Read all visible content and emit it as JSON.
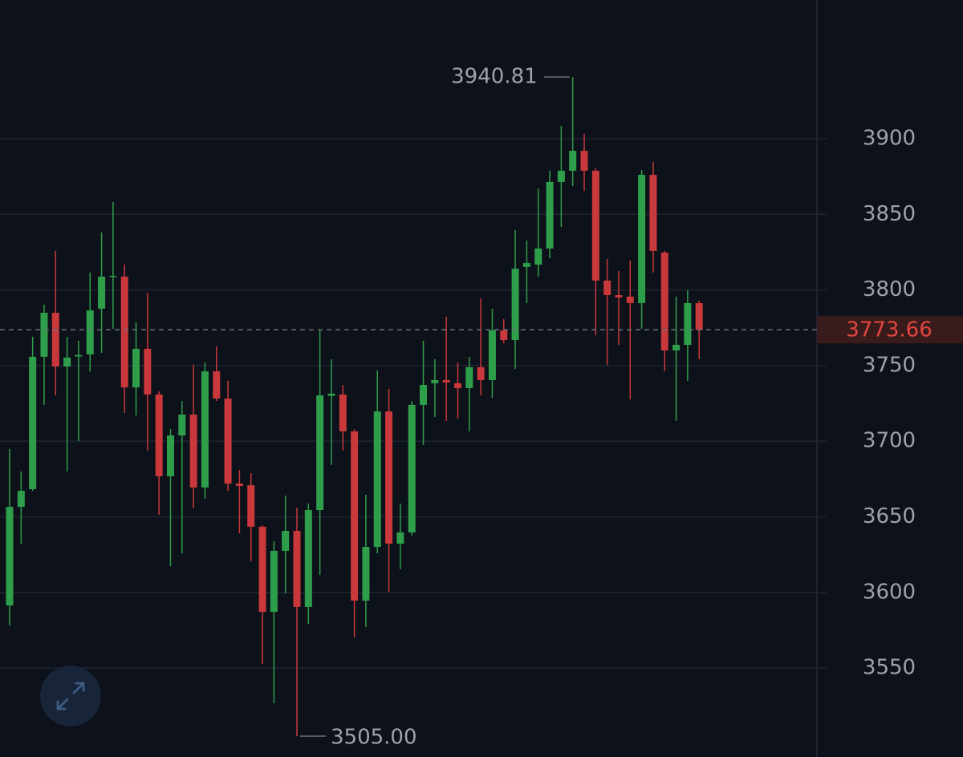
{
  "chart_data": {
    "type": "candlestick",
    "open": [
      3591.4,
      3656.6,
      3668.3,
      3755.8,
      3784.9,
      3749.4,
      3756,
      3757.4,
      3787.6,
      3808.8,
      3808.8,
      3735.6,
      3761.1,
      3730.9,
      3676.8,
      3703.8,
      3717.6,
      3669.4,
      3746.2,
      3728.2,
      3672,
      3670.9,
      3643.4,
      3587.2,
      3627.5,
      3640.7,
      3590.4,
      3654.5,
      3730,
      3730.9,
      3706.5,
      3594.6,
      3630.1,
      3719.7,
      3632.3,
      3639.7,
      3724,
      3738.3,
      3740.4,
      3738.3,
      3735.1,
      3748.9,
      3740.4,
      3773.3,
      3766.9,
      3815.2,
      3816.8,
      3827.4,
      3871.4,
      3878.8,
      3892,
      3878.8,
      3806.2,
      3796.6,
      3795.6,
      3791.3,
      3876.1,
      3824.7,
      3760,
      3763.7,
      3791.3
    ],
    "high": [
      3694.8,
      3680,
      3769,
      3790.3,
      3825.8,
      3769,
      3766.4,
      3811.5,
      3838,
      3858.1,
      3816.8,
      3778.6,
      3798.2,
      3733,
      3708.1,
      3726.6,
      3750.5,
      3752.1,
      3762.7,
      3740,
      3681,
      3678.9,
      3644.4,
      3633.8,
      3664.1,
      3656.1,
      3658.8,
      3773.3,
      3754.2,
      3737.2,
      3708,
      3664.6,
      3746.8,
      3734.6,
      3658.8,
      3726.6,
      3766.4,
      3754.2,
      3782.3,
      3752.1,
      3755.8,
      3794.5,
      3787.6,
      3780.7,
      3839.6,
      3832.7,
      3867.1,
      3878.8,
      3908.5,
      3940.81,
      3903.2,
      3880.4,
      3820.5,
      3812.5,
      3819.4,
      3879.3,
      3884.6,
      3825.8,
      3795.6,
      3799.8,
      3792.9
    ],
    "low": [
      3578.2,
      3632,
      3667.2,
      3724,
      3730.3,
      3680,
      3700,
      3746,
      3758.4,
      3774.3,
      3718.7,
      3717,
      3693.8,
      3651.3,
      3617.4,
      3625.9,
      3655.6,
      3661.9,
      3726.6,
      3667.2,
      3639.1,
      3620.6,
      3552.7,
      3526.7,
      3599.4,
      3505,
      3579.2,
      3611.6,
      3684.2,
      3693.8,
      3570.2,
      3577.1,
      3625.9,
      3600.4,
      3615.3,
      3637.6,
      3697.5,
      3716,
      3713.4,
      3715,
      3706.5,
      3730.3,
      3728.7,
      3764.8,
      3747.8,
      3791.3,
      3808.8,
      3821,
      3841.7,
      3868.7,
      3865.5,
      3770.1,
      3750.5,
      3763.7,
      3727.7,
      3774.3,
      3811.5,
      3746.2,
      3713.4,
      3739.9,
      3754.2
    ],
    "close": [
      3656.6,
      3667.2,
      3755.8,
      3784.9,
      3749.4,
      3755.3,
      3757,
      3786.5,
      3808.8,
      3809.3,
      3735.6,
      3761.1,
      3730.9,
      3676.8,
      3703.8,
      3717.6,
      3669.4,
      3746.2,
      3728.2,
      3672,
      3670.4,
      3643.4,
      3587.2,
      3627.5,
      3640.7,
      3590.4,
      3654.5,
      3730.3,
      3731.4,
      3706.5,
      3594.6,
      3630.1,
      3719.7,
      3632.3,
      3639.7,
      3724,
      3737.2,
      3740.4,
      3738.8,
      3735.1,
      3748.9,
      3740.4,
      3773.3,
      3766.9,
      3814.1,
      3817.8,
      3827.4,
      3871.4,
      3878.8,
      3892,
      3878.8,
      3806.2,
      3796.6,
      3795,
      3791.3,
      3876.1,
      3825.8,
      3760,
      3763.7,
      3791.3,
      3773.66
    ],
    "up_color": "#2e9e4a",
    "down_color": "#c9383a",
    "low_label": "3505.00",
    "ylim": [
      3491.2,
      3991.7
    ],
    "yticks": [
      3550,
      3600,
      3650,
      3700,
      3750,
      3800,
      3850,
      3900
    ],
    "grid": true
  }
}
